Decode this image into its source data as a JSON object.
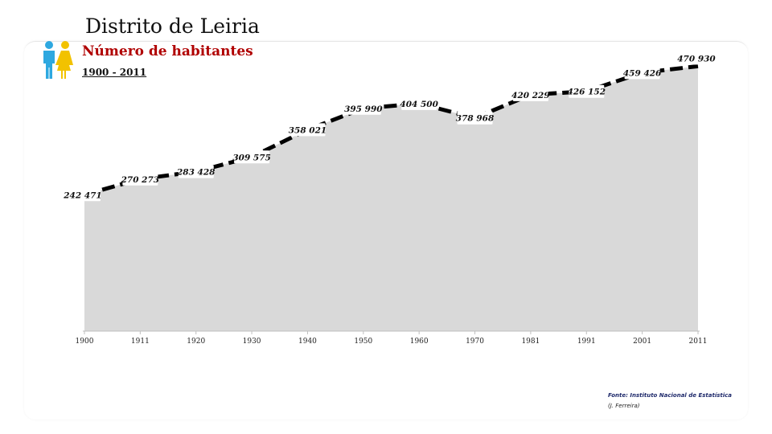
{
  "header": {
    "title": "Distrito de Leiria",
    "subtitle": "Número de habitantes",
    "period": "1900 - 2011"
  },
  "icons": {
    "people": "people-icon"
  },
  "colors": {
    "title": "#111111",
    "subtitle": "#b00000",
    "area_fill": "#d9d9d9",
    "line": "#000000",
    "source": "#1f2a6b"
  },
  "footer": {
    "source": "Fonte: Instituto Nacional de Estatística",
    "author": "(J. Ferreira)"
  },
  "chart_data": {
    "type": "area",
    "x": [
      "1900",
      "1911",
      "1920",
      "1930",
      "1940",
      "1950",
      "1960",
      "1970",
      "1981",
      "1991",
      "2001",
      "2011"
    ],
    "values": [
      242471,
      270273,
      283428,
      309575,
      358021,
      395990,
      404500,
      378968,
      420229,
      426152,
      459426,
      470930
    ],
    "data_labels": [
      "242 471",
      "270 273",
      "283 428",
      "309 575",
      "358 021",
      "395 990",
      "404 500",
      "378 968",
      "420 229",
      "426 152",
      "459 426",
      "470 930"
    ],
    "title": "Número de habitantes",
    "xlabel": "",
    "ylabel": "",
    "ylim": [
      0,
      500000
    ],
    "grid": false,
    "legend": "none"
  }
}
